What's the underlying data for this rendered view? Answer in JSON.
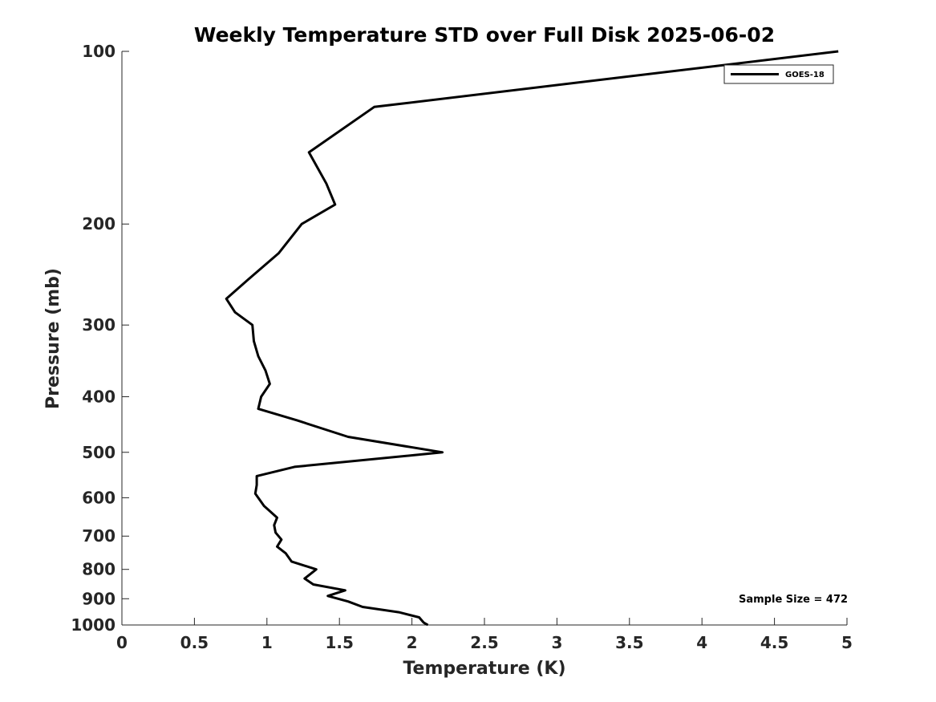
{
  "chart_data": {
    "type": "line",
    "title": "Weekly Temperature STD over Full Disk 2025-06-02",
    "xlabel": "Temperature (K)",
    "ylabel": "Pressure (mb)",
    "xlim": [
      0,
      5
    ],
    "ylim": [
      100,
      1000
    ],
    "yscale": "log",
    "ydirection": "reversed",
    "xticks": [
      0,
      0.5,
      1,
      1.5,
      2,
      2.5,
      3,
      3.5,
      4,
      4.5,
      5
    ],
    "xtick_labels": [
      "0",
      "0.5",
      "1",
      "1.5",
      "2",
      "2.5",
      "3",
      "3.5",
      "4",
      "4.5",
      "5"
    ],
    "yticks": [
      100,
      200,
      300,
      400,
      500,
      600,
      700,
      800,
      900,
      1000
    ],
    "ytick_labels": [
      "100",
      "200",
      "300",
      "400",
      "500",
      "600",
      "700",
      "800",
      "900",
      "1000"
    ],
    "grid": false,
    "legend_position": "top-right",
    "series": [
      {
        "name": "GOES-18",
        "color": "#000000",
        "temperature": [
          4.94,
          1.74,
          1.29,
          1.41,
          1.47,
          1.24,
          1.08,
          0.87,
          0.72,
          0.78,
          0.9,
          0.91,
          0.94,
          0.99,
          1.02,
          0.96,
          0.94,
          1.21,
          1.56,
          2.21,
          1.19,
          0.93,
          0.93,
          0.92,
          0.98,
          1.07,
          1.05,
          1.06,
          1.1,
          1.07,
          1.13,
          1.17,
          1.34,
          1.26,
          1.32,
          1.54,
          1.42,
          1.56,
          1.66,
          1.91,
          2.05,
          2.08,
          2.11
        ],
        "pressure": [
          100,
          125,
          150,
          170,
          185,
          200,
          225,
          250,
          270,
          285,
          300,
          320,
          340,
          360,
          380,
          400,
          420,
          440,
          470,
          500,
          530,
          550,
          570,
          590,
          620,
          650,
          670,
          690,
          710,
          730,
          750,
          775,
          800,
          830,
          850,
          870,
          890,
          910,
          930,
          950,
          970,
          990,
          1000
        ]
      }
    ],
    "annotations": [
      {
        "text": "Sample Size = 472",
        "position": "bottom-right"
      }
    ]
  }
}
